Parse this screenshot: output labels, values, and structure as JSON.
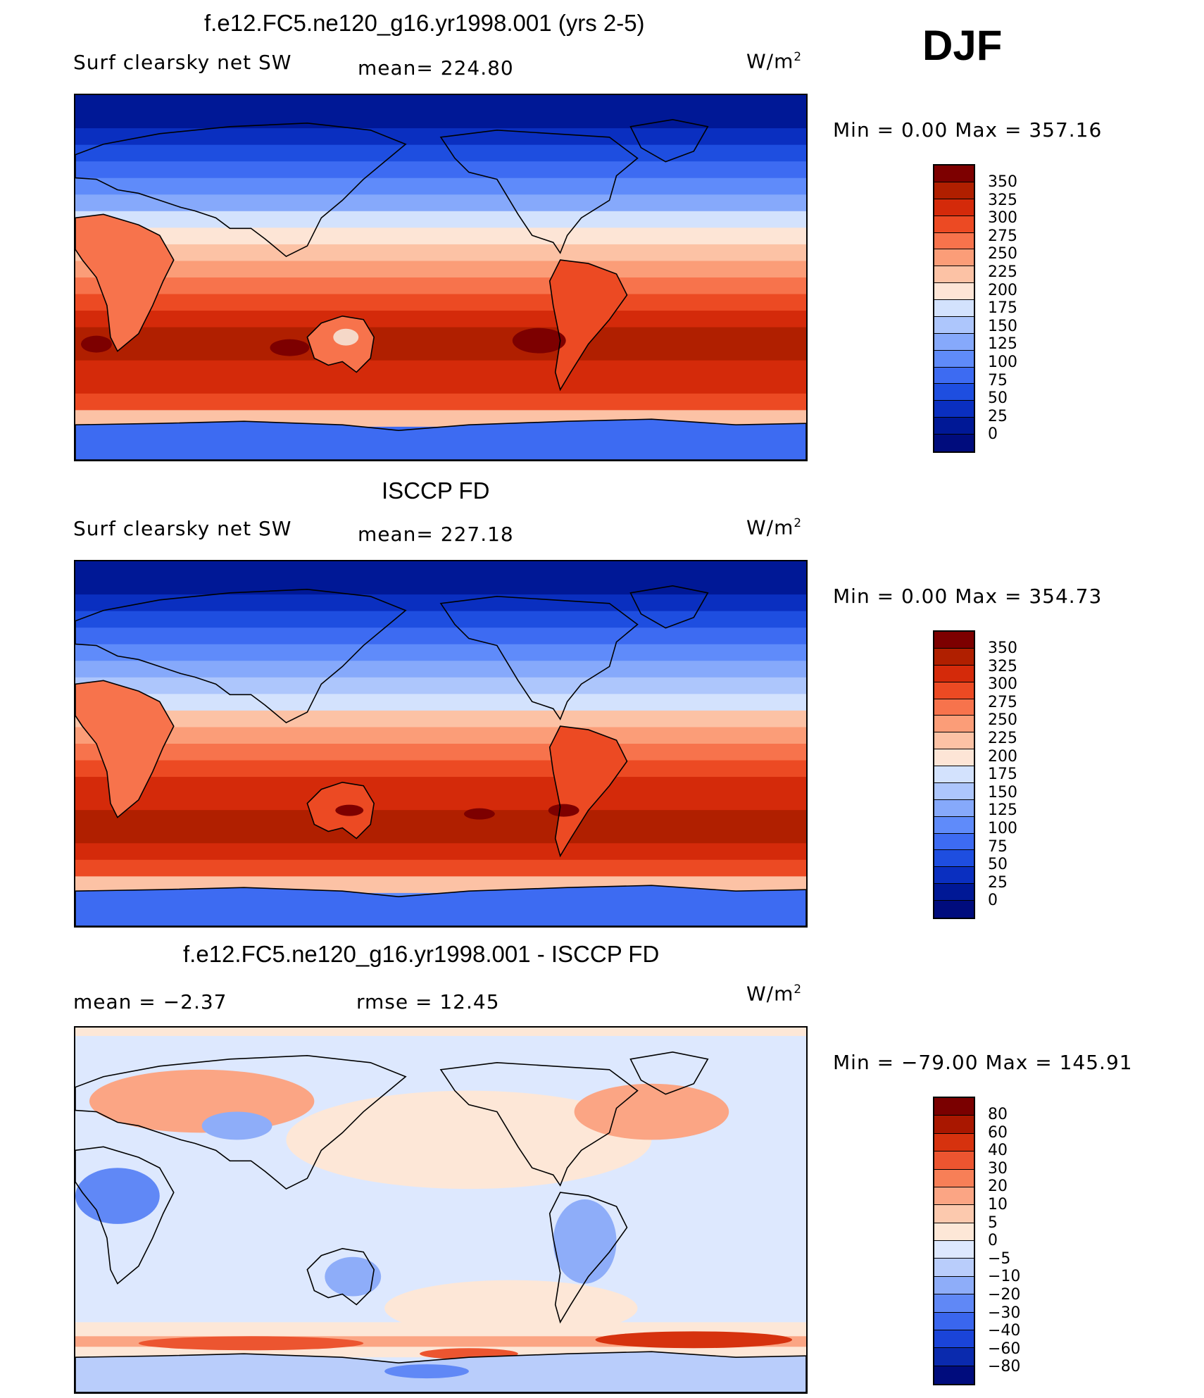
{
  "season": "DJF",
  "panels": [
    {
      "title": "f.e12.FC5.ne120_g16.yr1998.001 (yrs 2-5)",
      "left_label": "Surf clearsky net SW",
      "stat_label": "mean=  224.80",
      "units": "W/m",
      "units_sup": "2",
      "minmax": "Min =     0.00 Max = 357.16",
      "kind": "field",
      "cbar_ticks": [
        "350",
        "325",
        "300",
        "275",
        "250",
        "225",
        "200",
        "175",
        "150",
        "125",
        "100",
        "75",
        "50",
        "25",
        "0"
      ]
    },
    {
      "title": "ISCCP FD",
      "left_label": "Surf clearsky net SW",
      "stat_label": "mean=  227.18",
      "units": "W/m",
      "units_sup": "2",
      "minmax": "Min =     0.00 Max = 354.73",
      "kind": "field",
      "cbar_ticks": [
        "350",
        "325",
        "300",
        "275",
        "250",
        "225",
        "200",
        "175",
        "150",
        "125",
        "100",
        "75",
        "50",
        "25",
        "0"
      ]
    },
    {
      "title": "f.e12.FC5.ne120_g16.yr1998.001 - ISCCP FD",
      "left_label": "mean =   −2.37",
      "stat_label": "rmse =    12.45",
      "units": "W/m",
      "units_sup": "2",
      "minmax": "Min = −79.00 Max = 145.91",
      "kind": "diff",
      "cbar_ticks": [
        "80",
        "60",
        "40",
        "30",
        "20",
        "10",
        "5",
        "0",
        "−5",
        "−10",
        "−20",
        "−30",
        "−40",
        "−60",
        "−80"
      ]
    }
  ],
  "colors": {
    "field_scale": [
      "#000c7d",
      "#001896",
      "#0a2fc0",
      "#1e4ee0",
      "#3d6bf2",
      "#5f8bfa",
      "#86a9fb",
      "#adc6fc",
      "#d3e2fd",
      "#fde5d6",
      "#fcc2a5",
      "#fb9d78",
      "#f7734c",
      "#ec4a23",
      "#d42a0a",
      "#b01f00",
      "#7d0000"
    ],
    "diff_scale": [
      "#000c7d",
      "#0a2aae",
      "#1a44d8",
      "#3a66ee",
      "#6088f6",
      "#8eadf9",
      "#b9cdfb",
      "#dde8fe",
      "#fde7d7",
      "#fcc9ae",
      "#fba584",
      "#f77f57",
      "#ec5530",
      "#d6320e",
      "#a91700",
      "#7a0000"
    ],
    "land_line": "#000000"
  }
}
